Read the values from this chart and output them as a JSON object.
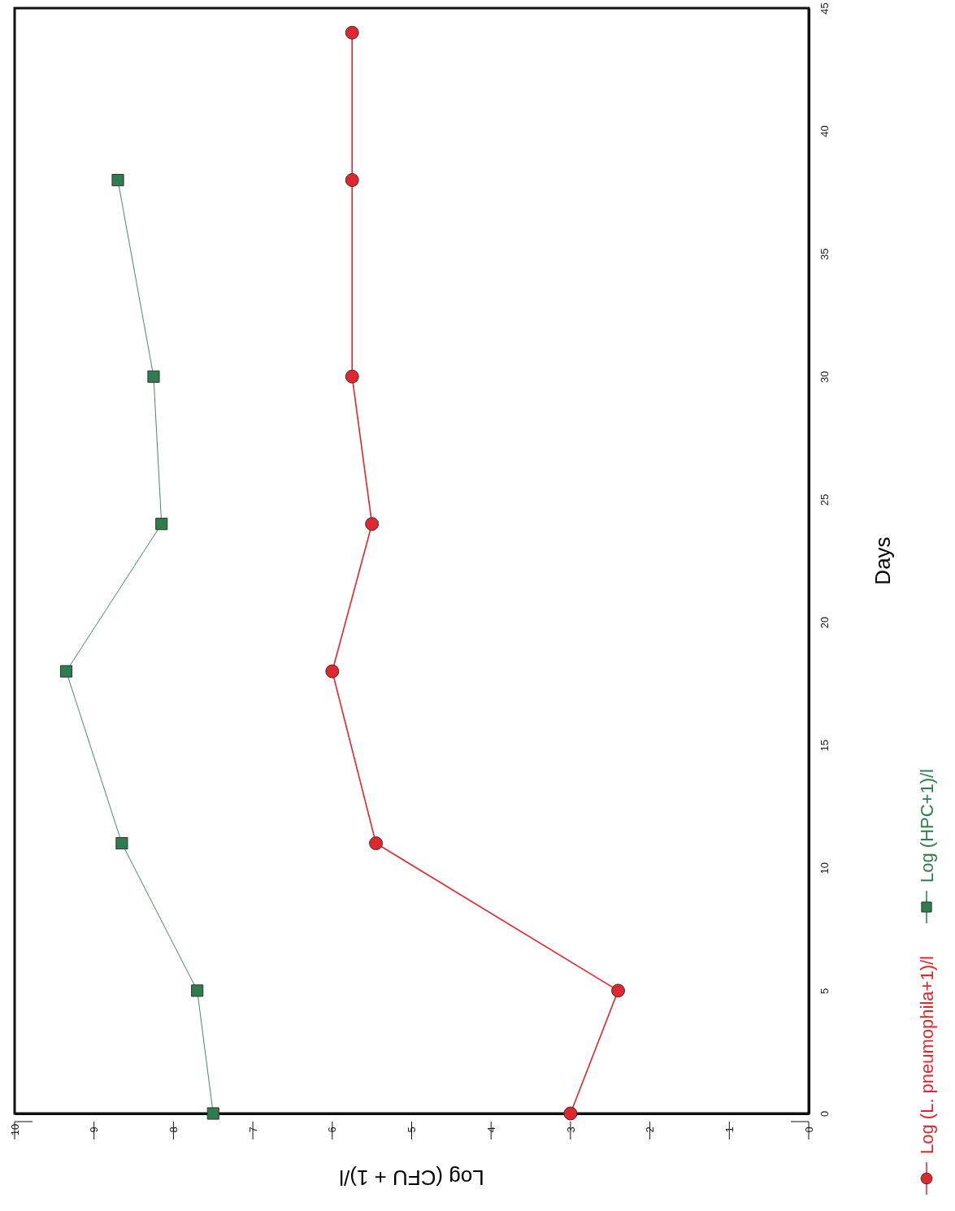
{
  "chart_data": {
    "type": "line",
    "xlabel": "Log (CFU + 1)/l",
    "ylabel": "Days",
    "xlim": [
      10,
      0
    ],
    "xticks": [
      10,
      9,
      8,
      7,
      6,
      5,
      4,
      3,
      2,
      1,
      0
    ],
    "ylim": [
      0,
      45
    ],
    "yticks": [
      0,
      5,
      10,
      15,
      20,
      25,
      30,
      35,
      40,
      45
    ],
    "grid": false,
    "legend": "right",
    "series": [
      {
        "name": "Log (L. pneumophila+1)/l",
        "color": "#e0262f",
        "marker": "circle",
        "x": [
          3.0,
          2.4,
          5.45,
          6.0,
          5.5,
          5.75,
          5.75,
          5.75
        ],
        "values": [
          0,
          5,
          11,
          18,
          24,
          30,
          38,
          44
        ]
      },
      {
        "name": "Log (HPC+1)/l",
        "color": "#2e7d4f",
        "marker": "square",
        "x": [
          7.5,
          7.7,
          8.65,
          9.35,
          8.15,
          8.25,
          8.7
        ],
        "values": [
          0,
          5,
          11,
          18,
          24,
          30,
          38
        ]
      }
    ]
  }
}
